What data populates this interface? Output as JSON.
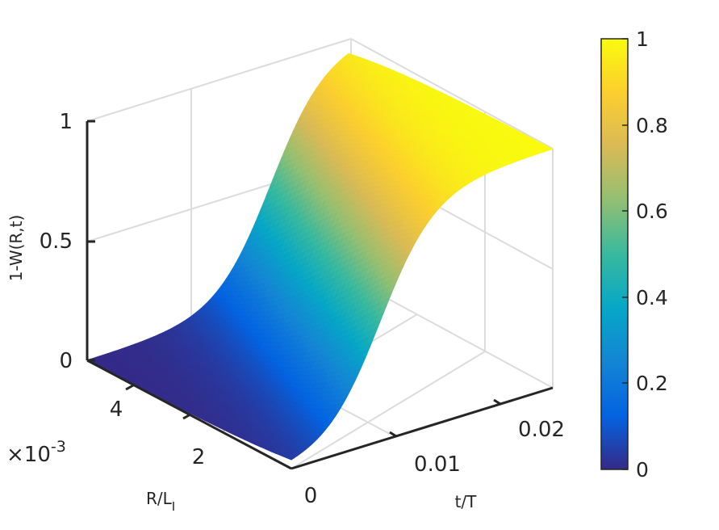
{
  "chart_data": {
    "type": "surface",
    "zlabel": "1-W(R,t)",
    "xlabel": "t/T",
    "ylabel_main": "R/L",
    "ylabel_sub": "I",
    "x_range": [
      0,
      0.025
    ],
    "y_range": [
      0,
      0.0055
    ],
    "z_range": [
      0,
      1
    ],
    "x_ticks": [
      "0",
      "0.01",
      "0.02"
    ],
    "y_ticks": [
      "2",
      "4"
    ],
    "z_ticks": [
      "0",
      "0.5",
      "1"
    ],
    "y_exponent_times": "×10",
    "y_exponent_power": "-3",
    "colorbar": {
      "range": [
        0,
        1
      ],
      "ticks": [
        "0",
        "0.2",
        "0.4",
        "0.6",
        "0.8",
        "1"
      ],
      "colormap": "parula"
    },
    "grid": true,
    "colors": {
      "parula": [
        "#352a87",
        "#0363e1",
        "#1485d4",
        "#06a7c6",
        "#38b99e",
        "#92bf73",
        "#d9ba56",
        "#fcce2e",
        "#f9fb0e"
      ],
      "axis": "#262626",
      "grid": "#dcdcdc"
    }
  }
}
